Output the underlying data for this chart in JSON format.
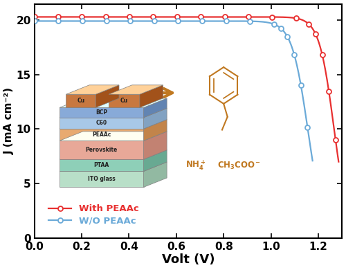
{
  "title": "",
  "xlabel": "Volt (V)",
  "ylabel": "J (mA cm⁻²)",
  "xlim": [
    0.0,
    1.3
  ],
  "ylim": [
    0.0,
    21.5
  ],
  "xticks": [
    0.0,
    0.2,
    0.4,
    0.6,
    0.8,
    1.0,
    1.2
  ],
  "yticks": [
    0,
    5,
    10,
    15,
    20
  ],
  "with_peaac_color": "#e83030",
  "wo_peaac_color": "#6baad8",
  "background": "#ffffff",
  "with_peaac_jsc": 20.3,
  "with_peaac_voc": 1.265,
  "wo_peaac_jsc": 19.92,
  "wo_peaac_voc": 1.155,
  "legend_with": "With PEAAc",
  "legend_wo": "W/O PEAAc",
  "chem_color": "#c07820",
  "arrow_color": "#c07820",
  "layer_colors": [
    "#b8dfc8",
    "#8ecfb8",
    "#e8a898",
    "#e8aa70",
    "#a8c8e8",
    "#88aad8"
  ],
  "layer_labels": [
    "ITO glass",
    "PTAA",
    "Perovskite",
    "PEAAc",
    "C60",
    "BCP"
  ],
  "cu_color": "#c87840"
}
